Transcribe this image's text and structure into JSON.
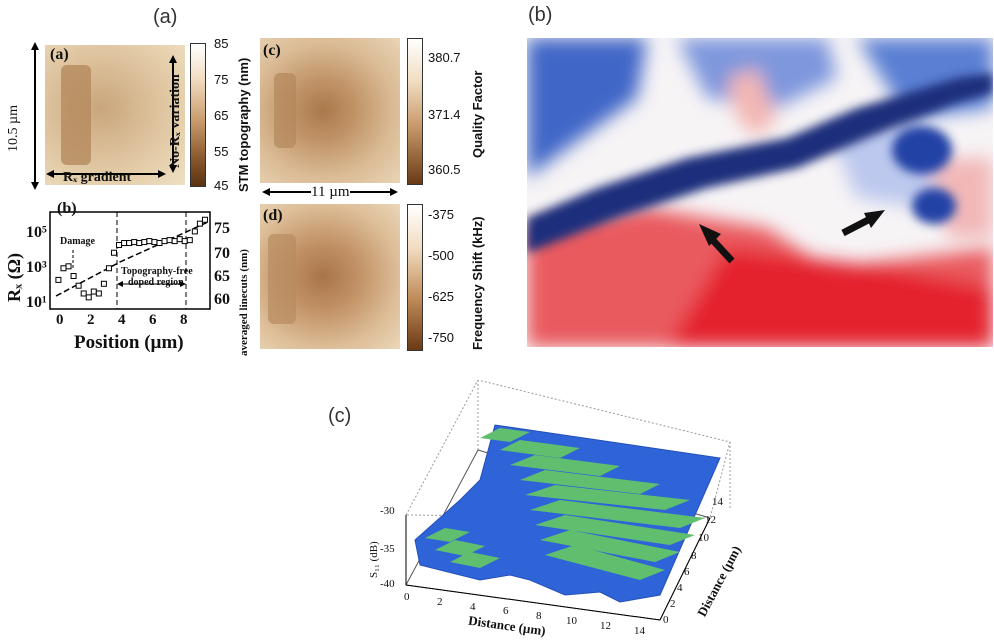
{
  "figure": {
    "panel_a_label": "(a)",
    "panel_b_label": "(b)",
    "panel_c_label": "(c)"
  },
  "panel_a": {
    "sub_a": {
      "label": "(a)",
      "scale_vertical": "10.5 µm",
      "annotation_vertical": "No-Rₓ variation",
      "annotation_horizontal": "Rₓ gradient",
      "colorbar_title": "STM topography (nm)",
      "colorbar_ticks": [
        "85",
        "75",
        "65",
        "55",
        "45"
      ]
    },
    "sub_b": {
      "label": "(b)",
      "ylabel_left": "Rₓ (Ω)",
      "ylabel_right": "averaged linecuts (nm)",
      "xlabel": "Position (µm)",
      "left_ticks": [
        "10⁵",
        "10³",
        "10¹"
      ],
      "right_ticks": [
        "75",
        "70",
        "65",
        "60"
      ],
      "x_ticks": [
        "0",
        "2",
        "4",
        "6",
        "8"
      ],
      "annotation_damage": "Damage",
      "annotation_region_1": "Topography-free",
      "annotation_region_2": "doped region"
    },
    "sub_c": {
      "label": "(c)",
      "scale_horizontal": "11 µm",
      "colorbar_title": "Quality Factor",
      "colorbar_ticks": [
        "380.7",
        "371.4",
        "360.5"
      ]
    },
    "sub_d": {
      "label": "(d)",
      "colorbar_title": "Frequency Shift (kHz)",
      "colorbar_ticks": [
        "-375",
        "-500",
        "-625",
        "-750"
      ]
    }
  },
  "panel_c": {
    "zlabel": "S₁₁ (dB)",
    "xlabel": "Distance (µm)",
    "ylabel": "Distance (µm)",
    "z_ticks": [
      "-30",
      "-35",
      "-40"
    ],
    "x_ticks": [
      "0",
      "2",
      "4",
      "6",
      "8",
      "10",
      "12",
      "14"
    ],
    "y_ticks": [
      "0",
      "2",
      "4",
      "6",
      "8",
      "10",
      "12",
      "14"
    ]
  },
  "colors": {
    "afm_light": "#e8d2b0",
    "afm_dark": "#8a5a2e",
    "map_red": "#e8323a",
    "map_blue": "#1f3f9c",
    "surface_green": "#5fbf6e",
    "surface_blue": "#2f63d8"
  },
  "chart_data": [
    {
      "type": "scatter",
      "title": "",
      "xlabel": "Position (µm)",
      "ylabel": "Rₓ (Ω)",
      "y2label": "averaged linecuts (nm)",
      "xlim": [
        -0.5,
        9
      ],
      "ylim_log10": [
        0.5,
        5.5
      ],
      "y2lim": [
        57,
        78
      ],
      "yscale": "log",
      "series": [
        {
          "x": [
            0,
            0.3,
            0.6,
            0.9,
            1.2,
            1.5,
            1.8,
            2.1,
            2.4,
            2.7,
            3.0,
            3.3,
            3.6,
            3.9,
            4.2,
            4.5,
            4.8,
            5.1,
            5.4,
            5.7,
            6.0,
            6.3,
            6.6,
            6.9,
            7.2,
            7.5,
            7.8,
            8.1,
            8.4,
            8.7
          ],
          "log10_y": [
            2.0,
            2.6,
            2.7,
            2.2,
            1.7,
            1.3,
            1.1,
            1.4,
            1.3,
            1.8,
            2.6,
            3.4,
            3.8,
            3.9,
            3.9,
            3.95,
            3.9,
            3.95,
            4.0,
            3.95,
            3.9,
            4.0,
            4.05,
            4.0,
            4.1,
            4.0,
            4.05,
            4.5,
            4.9,
            5.1
          ]
        }
      ],
      "annotations": [
        "Damage",
        "Topography-free doped region"
      ]
    },
    {
      "type": "heatmap",
      "title": "",
      "xlabel": "Distance (µm)",
      "ylabel": "Distance (µm)",
      "zlabel": "S₁₁ (dB)",
      "xlim": [
        0,
        15
      ],
      "ylim": [
        0,
        15
      ],
      "zlim": [
        -40,
        -28
      ]
    }
  ]
}
